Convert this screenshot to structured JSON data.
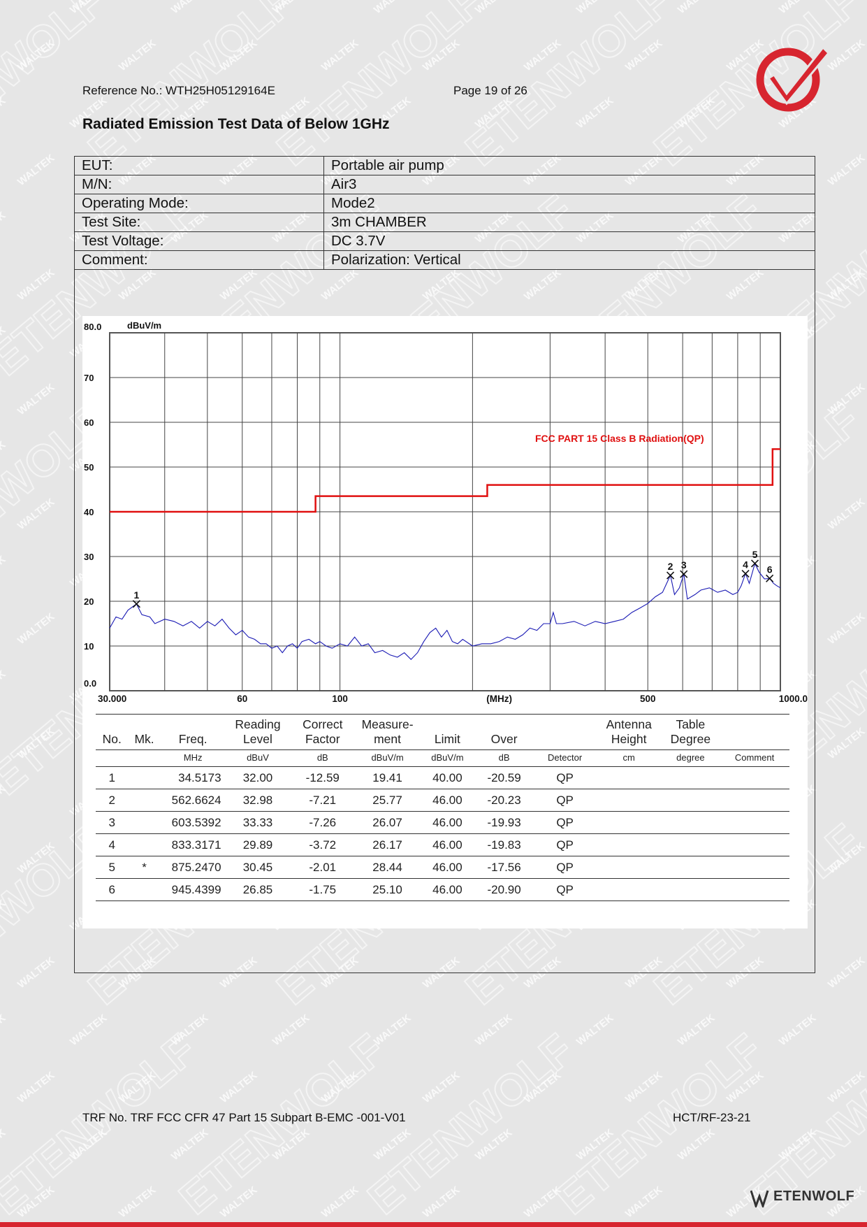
{
  "header": {
    "reference": "Reference No.: WTH25H05129164E",
    "page": "Page 19 of 26"
  },
  "watermark": {
    "small": "WALTEK",
    "large": "ETENWOLF"
  },
  "section_title": "Radiated Emission Test Data of Below 1GHz",
  "info": [
    {
      "label": "EUT:",
      "value": "Portable air pump"
    },
    {
      "label": "M/N:",
      "value": "Air3"
    },
    {
      "label": "Operating Mode:",
      "value": "Mode2"
    },
    {
      "label": "Test Site:",
      "value": "3m CHAMBER"
    },
    {
      "label": "Test Voltage:",
      "value": "DC 3.7V"
    },
    {
      "label": "Comment:",
      "value": "Polarization: Vertical"
    }
  ],
  "chart_data": {
    "type": "line",
    "ylabel": "dBuV/m",
    "xlabel": "(MHz)",
    "x_scale": "log",
    "xlim": [
      30,
      1000
    ],
    "ylim": [
      0,
      80
    ],
    "y_ticks": [
      "80.0",
      "70",
      "60",
      "50",
      "40",
      "30",
      "20",
      "10",
      "0.0"
    ],
    "x_ticks": [
      "30.000",
      "60",
      "100",
      "(MHz)",
      "500",
      "1000.0"
    ],
    "limit_label": "FCC PART 15 Class B Radiation(QP)",
    "limit_color": "#e01010",
    "trace_color": "#1a1ab4",
    "limit_line": [
      [
        30,
        40
      ],
      [
        88,
        40
      ],
      [
        88,
        43.5
      ],
      [
        216,
        43.5
      ],
      [
        216,
        46
      ],
      [
        960,
        46
      ],
      [
        960,
        54
      ],
      [
        1000,
        54
      ]
    ],
    "trace": [
      [
        30,
        14
      ],
      [
        31,
        16.5
      ],
      [
        32,
        16
      ],
      [
        33,
        18
      ],
      [
        34.5,
        19.4
      ],
      [
        35.5,
        17
      ],
      [
        37,
        16.5
      ],
      [
        38,
        15
      ],
      [
        40,
        16
      ],
      [
        42,
        15.5
      ],
      [
        44,
        14.5
      ],
      [
        46,
        15.5
      ],
      [
        48,
        14
      ],
      [
        50,
        15.5
      ],
      [
        52,
        14.5
      ],
      [
        54,
        16
      ],
      [
        56,
        14
      ],
      [
        58,
        12.5
      ],
      [
        60,
        13.5
      ],
      [
        62,
        12
      ],
      [
        64,
        11.5
      ],
      [
        66,
        10.5
      ],
      [
        68,
        10.5
      ],
      [
        70,
        9.5
      ],
      [
        72,
        10
      ],
      [
        74,
        8.5
      ],
      [
        76,
        10
      ],
      [
        78,
        10.5
      ],
      [
        80,
        9.5
      ],
      [
        82,
        11
      ],
      [
        85,
        11.5
      ],
      [
        88,
        10.5
      ],
      [
        90,
        11
      ],
      [
        93,
        10
      ],
      [
        96,
        9.5
      ],
      [
        100,
        10.5
      ],
      [
        104,
        10
      ],
      [
        108,
        12
      ],
      [
        112,
        10
      ],
      [
        116,
        10.5
      ],
      [
        120,
        8.5
      ],
      [
        125,
        9
      ],
      [
        130,
        8
      ],
      [
        135,
        7.5
      ],
      [
        140,
        8.5
      ],
      [
        145,
        7
      ],
      [
        150,
        8.5
      ],
      [
        155,
        11
      ],
      [
        160,
        13
      ],
      [
        165,
        14
      ],
      [
        170,
        12
      ],
      [
        175,
        13.5
      ],
      [
        180,
        11
      ],
      [
        185,
        10.5
      ],
      [
        190,
        11.5
      ],
      [
        200,
        10
      ],
      [
        210,
        10.5
      ],
      [
        220,
        10.5
      ],
      [
        230,
        11
      ],
      [
        240,
        12
      ],
      [
        250,
        11.5
      ],
      [
        260,
        12.5
      ],
      [
        270,
        14
      ],
      [
        280,
        13.5
      ],
      [
        290,
        15
      ],
      [
        300,
        15
      ],
      [
        305,
        17.5
      ],
      [
        310,
        15
      ],
      [
        320,
        15
      ],
      [
        340,
        15.5
      ],
      [
        360,
        14.5
      ],
      [
        380,
        15.5
      ],
      [
        400,
        15
      ],
      [
        420,
        15.5
      ],
      [
        440,
        16
      ],
      [
        460,
        17.5
      ],
      [
        480,
        18.5
      ],
      [
        500,
        19.5
      ],
      [
        520,
        21
      ],
      [
        540,
        22
      ],
      [
        562.66,
        25.8
      ],
      [
        575,
        21.5
      ],
      [
        590,
        23
      ],
      [
        603.54,
        26.1
      ],
      [
        615,
        20.5
      ],
      [
        640,
        21.5
      ],
      [
        660,
        22.5
      ],
      [
        690,
        23
      ],
      [
        720,
        22
      ],
      [
        750,
        22.5
      ],
      [
        780,
        21.5
      ],
      [
        800,
        22
      ],
      [
        815,
        23.5
      ],
      [
        833.32,
        26.2
      ],
      [
        850,
        24
      ],
      [
        875.25,
        28.4
      ],
      [
        895,
        26.5
      ],
      [
        920,
        25
      ],
      [
        945.44,
        25.1
      ],
      [
        965,
        24
      ],
      [
        980,
        23.5
      ],
      [
        1000,
        23
      ]
    ],
    "markers": [
      {
        "label": "1",
        "x": 34.5173,
        "y": 19.41
      },
      {
        "label": "2",
        "x": 562.6624,
        "y": 25.77
      },
      {
        "label": "3",
        "x": 603.5392,
        "y": 26.07
      },
      {
        "label": "4",
        "x": 833.3171,
        "y": 26.17
      },
      {
        "label": "5",
        "x": 875.247,
        "y": 28.44
      },
      {
        "label": "6",
        "x": 945.4399,
        "y": 25.1
      }
    ]
  },
  "results": {
    "headers": [
      "No.",
      "Mk.",
      "Freq.",
      "Reading\nLevel",
      "Correct\nFactor",
      "Measure-\nment",
      "Limit",
      "Over",
      "",
      "Antenna\nHeight",
      "Table\nDegree",
      ""
    ],
    "units": [
      "",
      "",
      "MHz",
      "dBuV",
      "dB",
      "dBuV/m",
      "dBuV/m",
      "dB",
      "Detector",
      "cm",
      "degree",
      "Comment"
    ],
    "rows": [
      [
        "1",
        "",
        "34.5173",
        "32.00",
        "-12.59",
        "19.41",
        "40.00",
        "-20.59",
        "QP",
        "",
        "",
        ""
      ],
      [
        "2",
        "",
        "562.6624",
        "32.98",
        "-7.21",
        "25.77",
        "46.00",
        "-20.23",
        "QP",
        "",
        "",
        ""
      ],
      [
        "3",
        "",
        "603.5392",
        "33.33",
        "-7.26",
        "26.07",
        "46.00",
        "-19.93",
        "QP",
        "",
        "",
        ""
      ],
      [
        "4",
        "",
        "833.3171",
        "29.89",
        "-3.72",
        "26.17",
        "46.00",
        "-19.83",
        "QP",
        "",
        "",
        ""
      ],
      [
        "5",
        "*",
        "875.2470",
        "30.45",
        "-2.01",
        "28.44",
        "46.00",
        "-17.56",
        "QP",
        "",
        "",
        ""
      ],
      [
        "6",
        "",
        "945.4399",
        "26.85",
        "-1.75",
        "25.10",
        "46.00",
        "-20.90",
        "QP",
        "",
        "",
        ""
      ]
    ]
  },
  "footer": {
    "trf": "TRF No. TRF FCC CFR 47 Part 15 Subpart B-EMC -001-V01",
    "code": "HCT/RF-23-21",
    "brand": "ETENWOLF"
  }
}
